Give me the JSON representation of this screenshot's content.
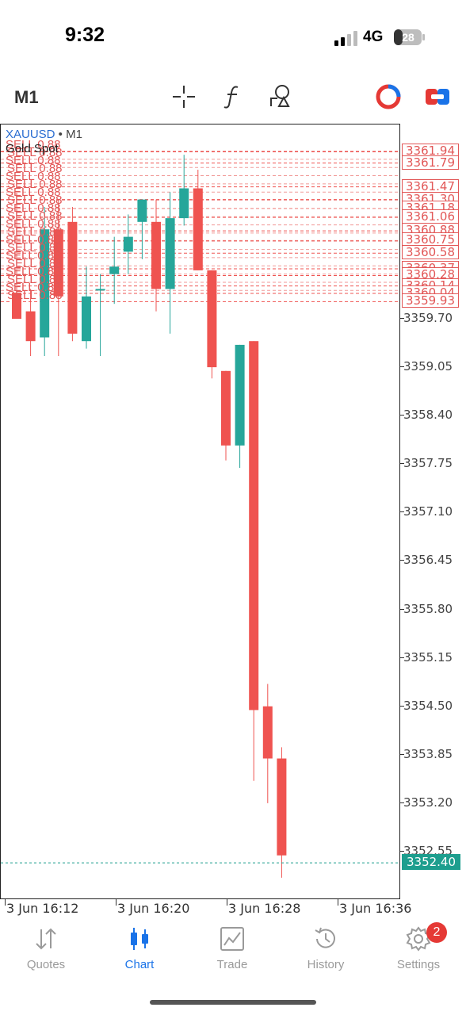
{
  "status_bar": {
    "time": "9:32",
    "network": "4G",
    "battery": "28"
  },
  "toolbar": {
    "timeframe": "M1",
    "icons": [
      "crosshair-icon",
      "function-icon",
      "objects-icon",
      "one-click-trading-icon",
      "trade-panel-icon"
    ]
  },
  "chart": {
    "symbol": "XAUUSD",
    "separator": " • ",
    "timeframe": "M1",
    "description": "Gold Spot",
    "sell_labels": [
      "SELL 0.88",
      "SELL 0.88",
      "SELL 0.88",
      "SELL 0.88",
      "SELL 0.88",
      "SELL 0.88",
      "SELL 0.88",
      "SELL 0.88",
      "SELL 0.88",
      "SELL 0.88",
      "SELL 0.88",
      "SELL 0.88",
      "SELL 0.88",
      "SELL 0.88",
      "SELL 0.88",
      "SELL 0.88",
      "SELL 0.88",
      "SELL 0.88",
      "SELL 0.88",
      "SELL 0.88"
    ],
    "price_axis": [
      "3359.70",
      "3359.05",
      "3358.40",
      "3357.75",
      "3357.10",
      "3356.45",
      "3355.80",
      "3355.15",
      "3354.50",
      "3353.85",
      "3353.20",
      "3352.55"
    ],
    "order_labels": [
      "3361.94",
      "3361.79",
      "3361.47",
      "3361.30",
      "3361.18",
      "3361.06",
      "3360.88",
      "3360.75",
      "3360.58",
      "3360.37",
      "3360.28",
      "3360.14",
      "3360.04",
      "3359.93"
    ],
    "current_price": "3352.40",
    "time_labels": [
      "3 Jun 16:12",
      "3 Jun 16:20",
      "3 Jun 16:28",
      "3 Jun 16:36"
    ]
  },
  "chart_data": {
    "type": "candlestick",
    "symbol": "XAUUSD",
    "timeframe": "M1",
    "ylim": [
      3352.0,
      3362.2
    ],
    "up_color": "#26a69a",
    "down_color": "#ef5350",
    "candles": [
      {
        "o": 3360.05,
        "h": 3361.4,
        "c": 3359.7,
        "l": 3359.7
      },
      {
        "o": 3359.8,
        "h": 3360.1,
        "c": 3359.4,
        "l": 3359.2
      },
      {
        "o": 3359.45,
        "h": 3361.2,
        "c": 3360.9,
        "l": 3359.2
      },
      {
        "o": 3360.9,
        "h": 3361.3,
        "c": 3360.0,
        "l": 3359.2
      },
      {
        "o": 3361.0,
        "h": 3361.2,
        "c": 3359.5,
        "l": 3359.4
      },
      {
        "o": 3359.4,
        "h": 3360.4,
        "c": 3360.0,
        "l": 3359.3
      },
      {
        "o": 3360.1,
        "h": 3360.3,
        "c": 3360.1,
        "l": 3359.2
      },
      {
        "o": 3360.3,
        "h": 3360.8,
        "c": 3360.4,
        "l": 3359.9
      },
      {
        "o": 3360.6,
        "h": 3361.1,
        "c": 3360.8,
        "l": 3360.3
      },
      {
        "o": 3361.0,
        "h": 3361.3,
        "c": 3361.3,
        "l": 3360.5
      },
      {
        "o": 3361.0,
        "h": 3361.3,
        "c": 3360.1,
        "l": 3359.8
      },
      {
        "o": 3360.1,
        "h": 3361.4,
        "c": 3361.05,
        "l": 3359.5
      },
      {
        "o": 3361.05,
        "h": 3361.9,
        "c": 3361.45,
        "l": 3360.95
      },
      {
        "o": 3361.45,
        "h": 3361.7,
        "c": 3360.35,
        "l": 3360.35
      },
      {
        "o": 3360.35,
        "h": 3360.35,
        "c": 3359.05,
        "l": 3358.9
      },
      {
        "o": 3359.0,
        "h": 3359.0,
        "c": 3358.0,
        "l": 3357.8
      },
      {
        "o": 3358.0,
        "h": 3359.35,
        "c": 3359.35,
        "l": 3357.7
      },
      {
        "o": 3359.4,
        "h": 3359.4,
        "c": 3354.45,
        "l": 3353.5
      },
      {
        "o": 3354.5,
        "h": 3354.8,
        "c": 3353.8,
        "l": 3353.2
      },
      {
        "o": 3353.8,
        "h": 3353.95,
        "c": 3352.5,
        "l": 3352.2
      }
    ],
    "current_price": 3352.4,
    "order_lines": [
      3361.94,
      3361.79,
      3361.47,
      3361.3,
      3361.18,
      3361.06,
      3360.88,
      3360.75,
      3360.58,
      3360.37,
      3360.28,
      3360.14,
      3360.04,
      3359.93
    ]
  },
  "nav": {
    "items": [
      {
        "label": "Quotes"
      },
      {
        "label": "Chart"
      },
      {
        "label": "Trade"
      },
      {
        "label": "History"
      },
      {
        "label": "Settings"
      }
    ],
    "settings_badge": "2"
  }
}
